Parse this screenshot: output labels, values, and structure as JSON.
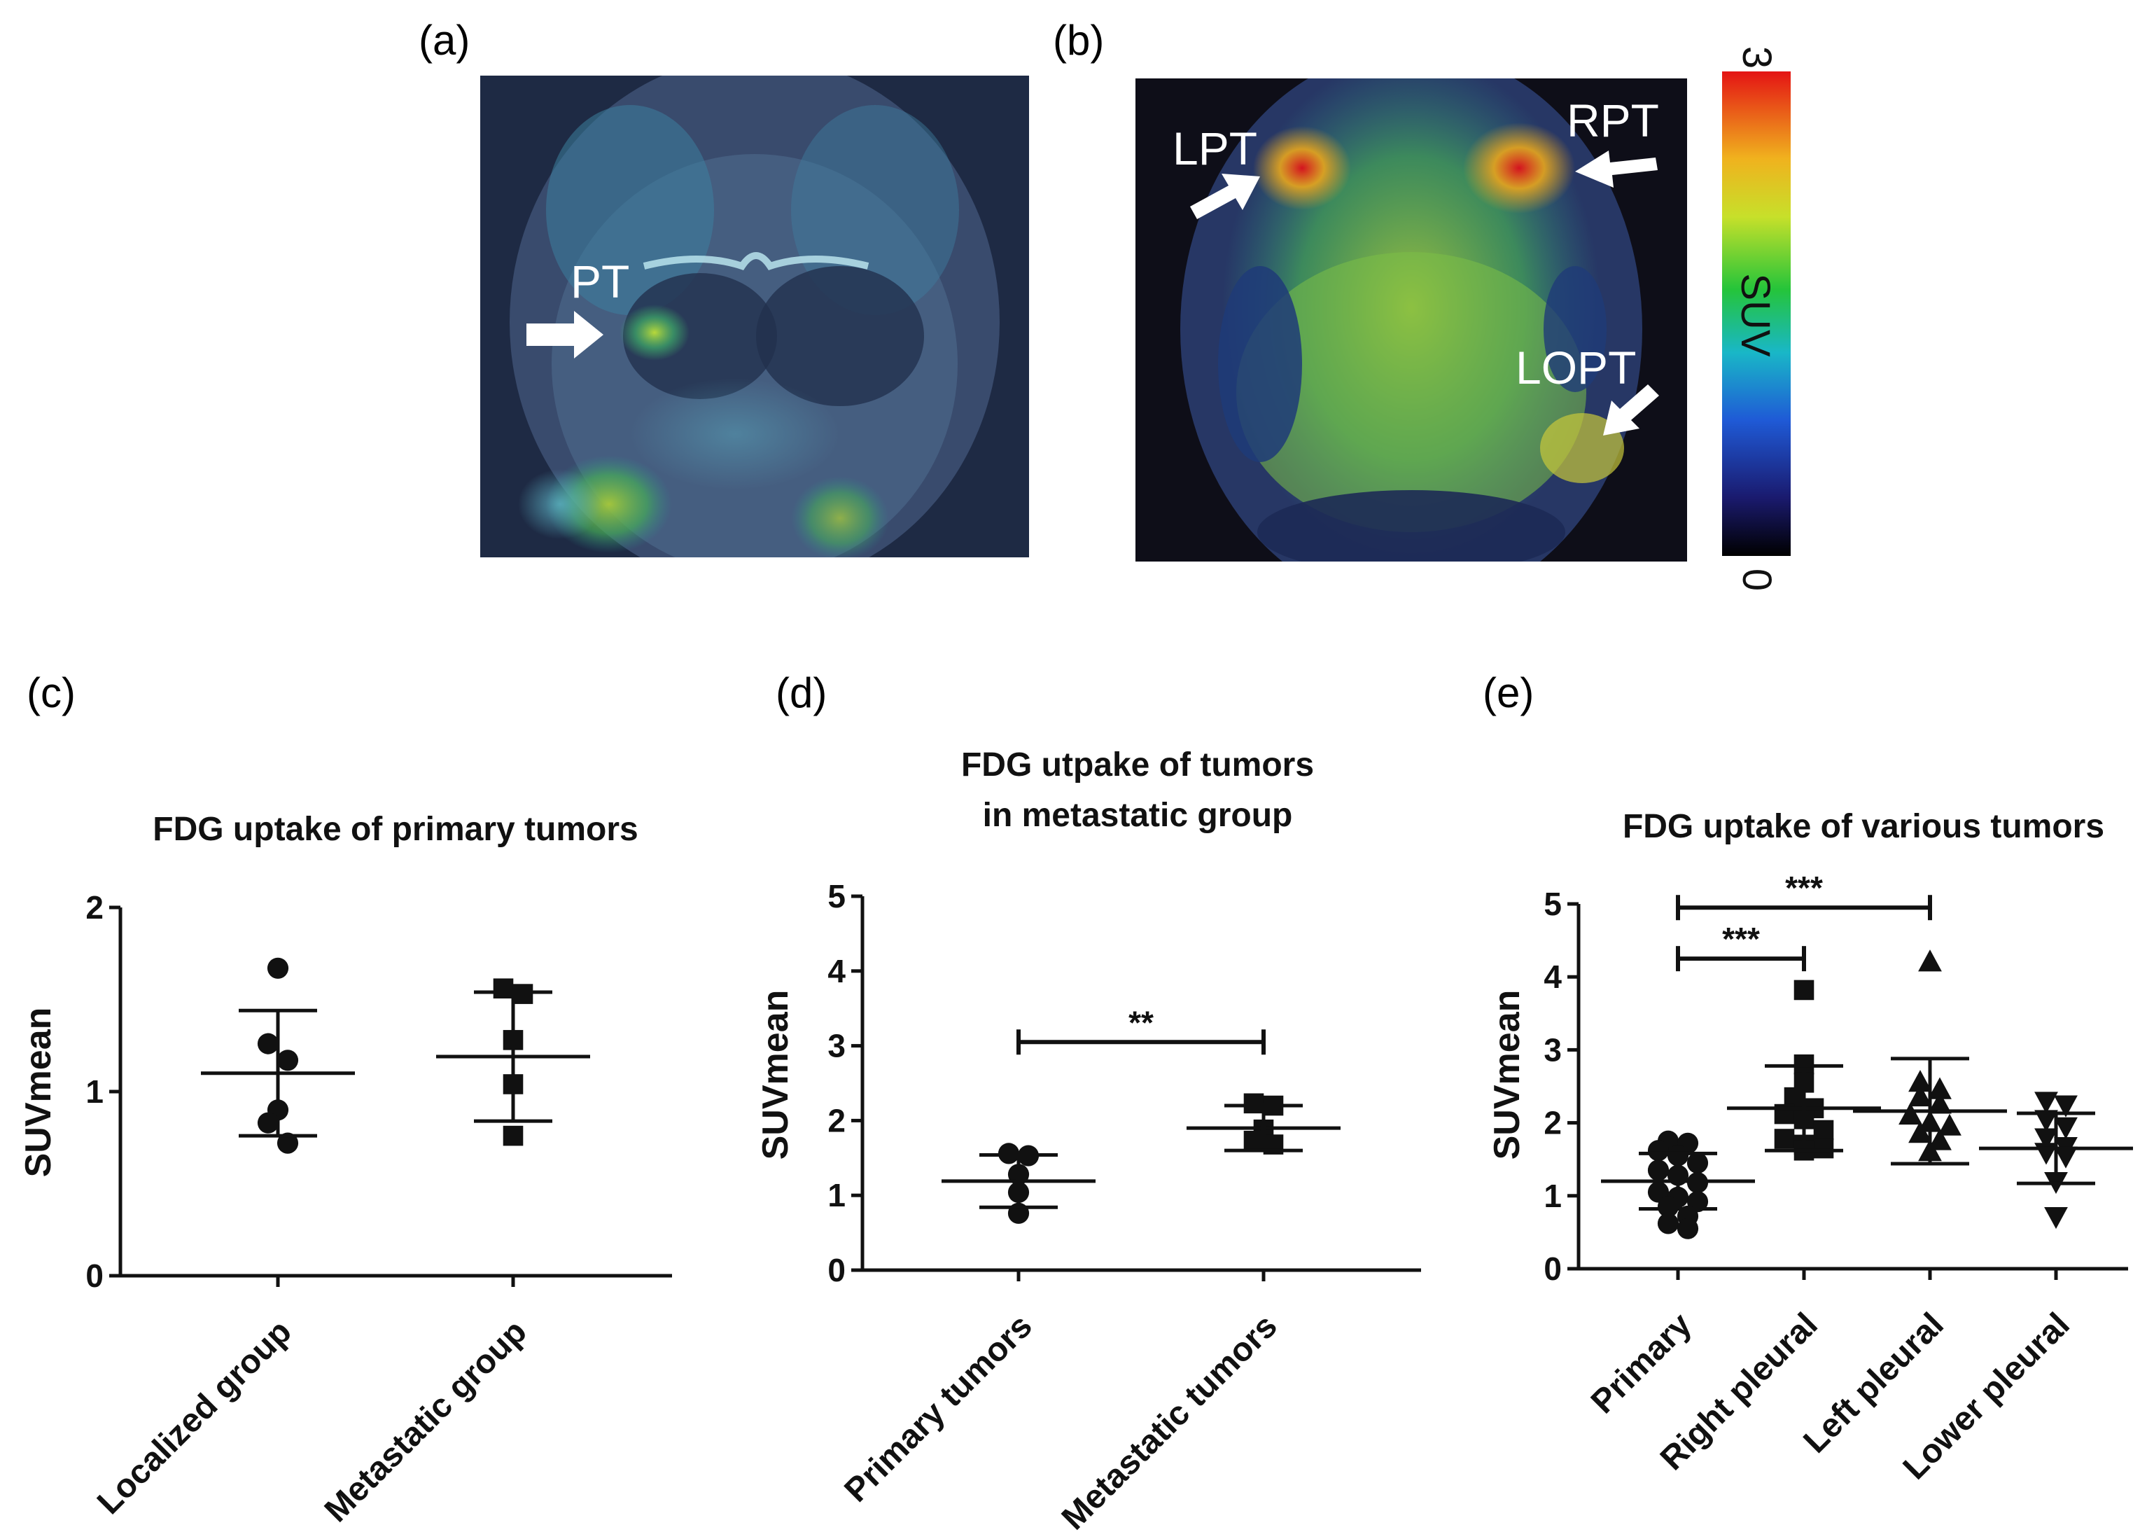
{
  "panels": {
    "a": {
      "label": "(a)",
      "annotations": [
        "PT"
      ]
    },
    "b": {
      "label": "(b)",
      "annotations": [
        "LPT",
        "RPT",
        "LOPT"
      ],
      "colorbar": {
        "label": "SUV",
        "max": "3",
        "min": "0"
      }
    },
    "c": {
      "label": "(c)"
    },
    "d": {
      "label": "(d)"
    },
    "e": {
      "label": "(e)"
    }
  },
  "colors": {
    "marker": "#111111",
    "axis": "#111111",
    "arrow": "#ffffff"
  },
  "chart_data": [
    {
      "id": "c",
      "type": "scatter",
      "title": [
        "FDG uptake of primary tumors"
      ],
      "ylabel": "SUVmean",
      "ylim": [
        0,
        2
      ],
      "yticks": [
        "0",
        "1",
        "2"
      ],
      "categories": [
        "Localized group",
        "Metastatic group"
      ],
      "series": [
        {
          "name": "Localized group",
          "marker": "circle",
          "values": [
            1.67,
            1.26,
            1.17,
            0.9,
            0.83,
            0.72
          ],
          "mean": 1.1,
          "sd": 0.34
        },
        {
          "name": "Metastatic group",
          "marker": "square",
          "values": [
            1.56,
            1.53,
            1.28,
            1.04,
            0.76
          ],
          "mean": 1.19,
          "sd": 0.35
        }
      ],
      "brackets": []
    },
    {
      "id": "d",
      "type": "scatter",
      "title": [
        "FDG utpake of tumors",
        "in metastatic group"
      ],
      "ylabel": "SUVmean",
      "ylim": [
        0,
        5
      ],
      "yticks": [
        "0",
        "1",
        "2",
        "3",
        "4",
        "5"
      ],
      "categories": [
        "Primary tumors",
        "Metastatic tumors"
      ],
      "series": [
        {
          "name": "Primary tumors",
          "marker": "circle",
          "values": [
            1.56,
            1.53,
            1.28,
            1.04,
            0.76
          ],
          "mean": 1.19,
          "sd": 0.35
        },
        {
          "name": "Metastatic tumors",
          "marker": "square",
          "values": [
            2.23,
            2.2,
            1.88,
            1.73,
            1.68
          ],
          "mean": 1.9,
          "sd": 0.3
        }
      ],
      "brackets": [
        {
          "from": 0,
          "to": 1,
          "y": 3.05,
          "label": "**"
        }
      ]
    },
    {
      "id": "e",
      "type": "scatter",
      "title": [
        "FDG uptake of various tumors"
      ],
      "ylabel": "SUVmean",
      "ylim": [
        0,
        5
      ],
      "yticks": [
        "0",
        "1",
        "2",
        "3",
        "4",
        "5"
      ],
      "categories": [
        "Primary",
        "Right pleural",
        "Left pleural",
        "Lower pleural"
      ],
      "series": [
        {
          "name": "Primary",
          "marker": "circle",
          "values": [
            1.75,
            1.72,
            1.62,
            1.55,
            1.45,
            1.35,
            1.28,
            1.18,
            1.05,
            0.98,
            0.92,
            0.85,
            0.72,
            0.62,
            0.55
          ],
          "mean": 1.2,
          "sd": 0.38
        },
        {
          "name": "Right pleural",
          "marker": "square",
          "values": [
            3.82,
            2.8,
            2.55,
            2.35,
            2.2,
            2.12,
            2.05,
            1.9,
            1.78,
            1.7,
            1.65,
            1.62
          ],
          "mean": 2.2,
          "sd": 0.58
        },
        {
          "name": "Left pleural",
          "marker": "triangle",
          "values": [
            4.2,
            2.55,
            2.45,
            2.35,
            2.25,
            2.1,
            2.0,
            1.95,
            1.85,
            1.75,
            1.6
          ],
          "mean": 2.16,
          "sd": 0.72
        },
        {
          "name": "Lower pleural",
          "marker": "triangle-down",
          "values": [
            2.3,
            2.25,
            2.05,
            1.95,
            1.8,
            1.68,
            1.6,
            1.55,
            1.2,
            0.72
          ],
          "mean": 1.65,
          "sd": 0.48
        }
      ],
      "brackets": [
        {
          "from": 0,
          "to": 2,
          "y": 4.95,
          "label": "***"
        },
        {
          "from": 0,
          "to": 1,
          "y": 4.25,
          "label": "***"
        }
      ]
    }
  ]
}
